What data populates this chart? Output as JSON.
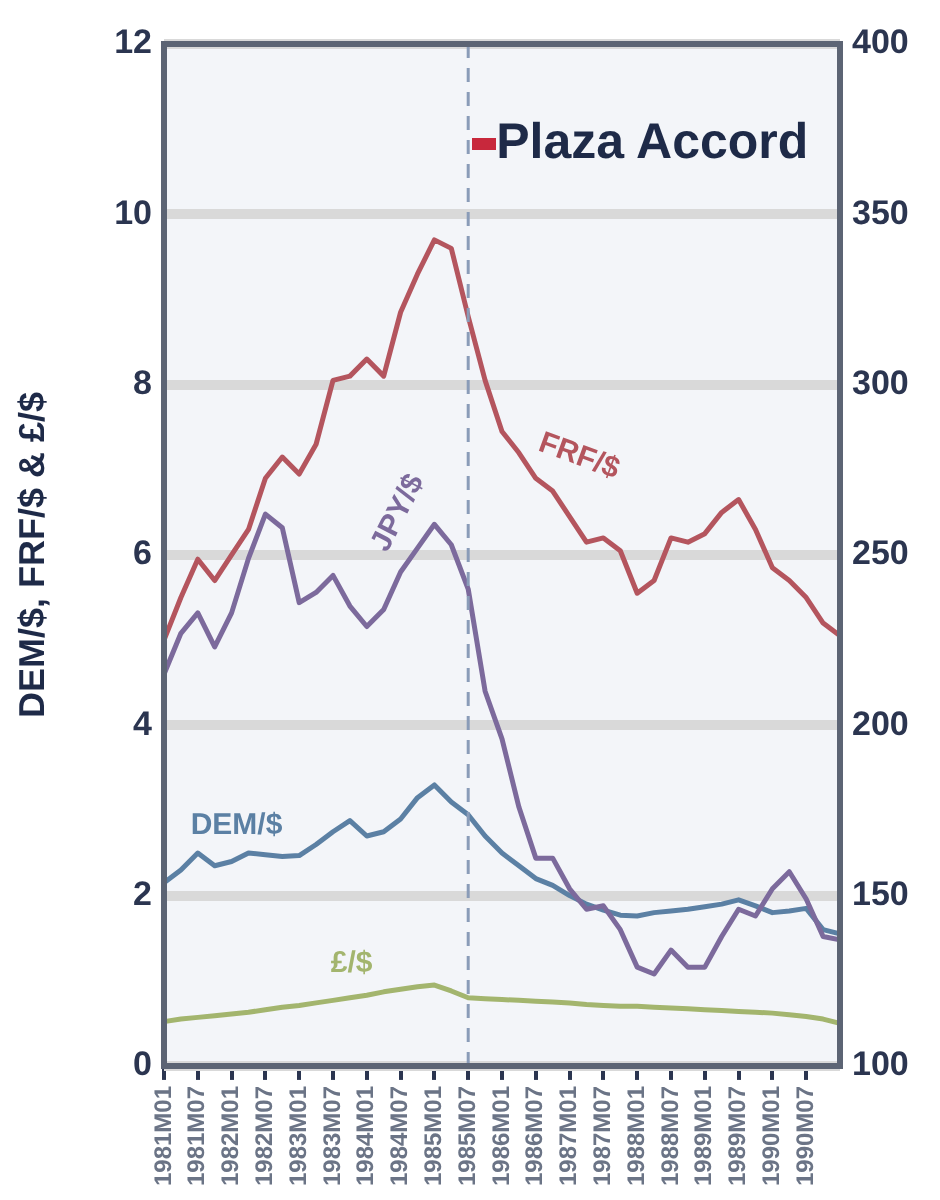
{
  "chart_data": {
    "type": "line",
    "ylabel": "DEM/$, FRF/$ & £/$",
    "categories": [
      "1981M01",
      null,
      "1981M07",
      null,
      "1982M01",
      null,
      "1982M07",
      null,
      "1983M01",
      null,
      "1983M07",
      null,
      "1984M01",
      null,
      "1984M07",
      null,
      "1985M01",
      null,
      "1985M07",
      null,
      "1986M01",
      null,
      "1986M07",
      null,
      "1987M01",
      null,
      "1987M07",
      null,
      "1988M01",
      null,
      "1988M07",
      null,
      "1989M01",
      null,
      "1989M07",
      null,
      "1990M01",
      null,
      "1990M07",
      null,
      null
    ],
    "ylim": [
      0,
      12
    ],
    "yticks": [
      0,
      2,
      4,
      6,
      8,
      10,
      12
    ],
    "y2lim": [
      100,
      400
    ],
    "y2ticks": [
      100,
      150,
      200,
      250,
      300,
      350,
      400
    ],
    "grid": "y",
    "marker": "none",
    "line_style": "solid",
    "ref_lines": [
      {
        "axis": "x",
        "value": "1985M07",
        "label": "Plaza Accord",
        "color": "#8a9cb8",
        "line_style": "dashed"
      }
    ],
    "series": [
      {
        "name": "FRF/$",
        "color": "#b4555e",
        "values": [
          5.0,
          5.5,
          5.95,
          5.7,
          6.0,
          6.3,
          6.9,
          7.15,
          6.95,
          7.3,
          8.05,
          8.1,
          8.3,
          8.1,
          8.85,
          9.3,
          9.7,
          9.6,
          8.8,
          8.05,
          7.45,
          7.2,
          6.9,
          6.75,
          6.45,
          6.15,
          6.2,
          6.05,
          5.55,
          5.7,
          6.2,
          6.15,
          6.25,
          6.5,
          6.65,
          6.3,
          5.85,
          5.7,
          5.5,
          5.2,
          5.05
        ]
      },
      {
        "name": "JPY/$",
        "color": "#7c6a9c",
        "axis": "y2",
        "values": [
          215,
          227,
          233,
          223,
          233,
          249,
          262,
          258,
          236,
          239,
          244,
          235,
          229,
          234,
          245,
          252,
          259,
          253,
          240,
          210,
          196,
          176,
          161,
          161,
          152,
          146,
          147,
          140,
          129,
          127,
          134,
          129,
          129,
          138,
          146,
          144,
          152,
          157,
          149,
          138,
          137
        ]
      },
      {
        "name": "DEM/$",
        "color": "#5b80a4",
        "values": [
          2.15,
          2.3,
          2.5,
          2.35,
          2.4,
          2.5,
          2.48,
          2.46,
          2.47,
          2.6,
          2.75,
          2.88,
          2.7,
          2.75,
          2.9,
          3.15,
          3.3,
          3.1,
          2.95,
          2.7,
          2.5,
          2.35,
          2.2,
          2.12,
          2.0,
          1.9,
          1.83,
          1.77,
          1.76,
          1.8,
          1.82,
          1.84,
          1.87,
          1.9,
          1.95,
          1.88,
          1.8,
          1.82,
          1.85,
          1.6,
          1.55
        ]
      },
      {
        "name": "£/$",
        "color": "#a3b56e",
        "values": [
          0.52,
          0.55,
          0.57,
          0.59,
          0.61,
          0.63,
          0.66,
          0.69,
          0.71,
          0.74,
          0.77,
          0.8,
          0.83,
          0.87,
          0.9,
          0.93,
          0.95,
          0.88,
          0.8,
          0.79,
          0.78,
          0.77,
          0.76,
          0.75,
          0.74,
          0.72,
          0.71,
          0.7,
          0.7,
          0.69,
          0.68,
          0.67,
          0.66,
          0.65,
          0.64,
          0.63,
          0.62,
          0.6,
          0.58,
          0.55,
          0.5
        ]
      }
    ]
  }
}
